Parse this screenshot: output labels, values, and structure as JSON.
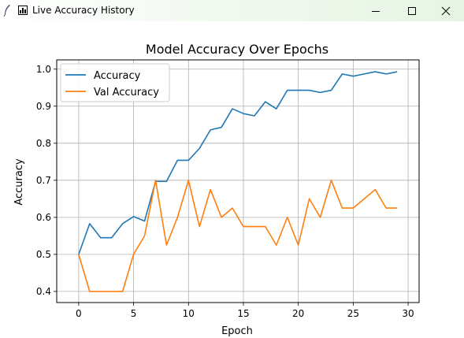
{
  "window": {
    "title": "Live Accuracy History",
    "icons": {
      "app": "feather-icon",
      "window": "chart-window-icon"
    },
    "buttons": [
      "minimize-icon",
      "maximize-icon",
      "close-icon"
    ]
  },
  "chart_data": {
    "type": "line",
    "title": "Model Accuracy Over Epochs",
    "xlabel": "Epoch",
    "ylabel": "Accuracy",
    "xlim": [
      -2,
      31
    ],
    "ylim": [
      0.37,
      1.025
    ],
    "x_ticks": [
      0,
      5,
      10,
      15,
      20,
      25,
      30
    ],
    "y_ticks": [
      0.4,
      0.5,
      0.6,
      0.7,
      0.8,
      0.9,
      1.0
    ],
    "grid": true,
    "legend_position": "top-left",
    "x": [
      0,
      1,
      2,
      3,
      4,
      5,
      6,
      7,
      8,
      9,
      10,
      11,
      12,
      13,
      14,
      15,
      16,
      17,
      18,
      19,
      20,
      21,
      22,
      23,
      24,
      25,
      26,
      27,
      28,
      29
    ],
    "series": [
      {
        "name": "Accuracy",
        "color": "#1f77b4",
        "values": [
          0.5,
          0.583,
          0.545,
          0.545,
          0.583,
          0.602,
          0.59,
          0.697,
          0.697,
          0.754,
          0.754,
          0.786,
          0.836,
          0.843,
          0.893,
          0.88,
          0.874,
          0.912,
          0.893,
          0.943,
          0.943,
          0.943,
          0.937,
          0.943,
          0.987,
          0.981,
          0.987,
          0.993,
          0.987,
          0.993
        ]
      },
      {
        "name": "Val Accuracy",
        "color": "#ff7f0e",
        "values": [
          0.5,
          0.4,
          0.4,
          0.4,
          0.4,
          0.5,
          0.55,
          0.7,
          0.525,
          0.6,
          0.7,
          0.575,
          0.675,
          0.6,
          0.625,
          0.575,
          0.575,
          0.575,
          0.525,
          0.6,
          0.525,
          0.65,
          0.6,
          0.7,
          0.625,
          0.625,
          0.65,
          0.675,
          0.625,
          0.625
        ]
      }
    ]
  }
}
